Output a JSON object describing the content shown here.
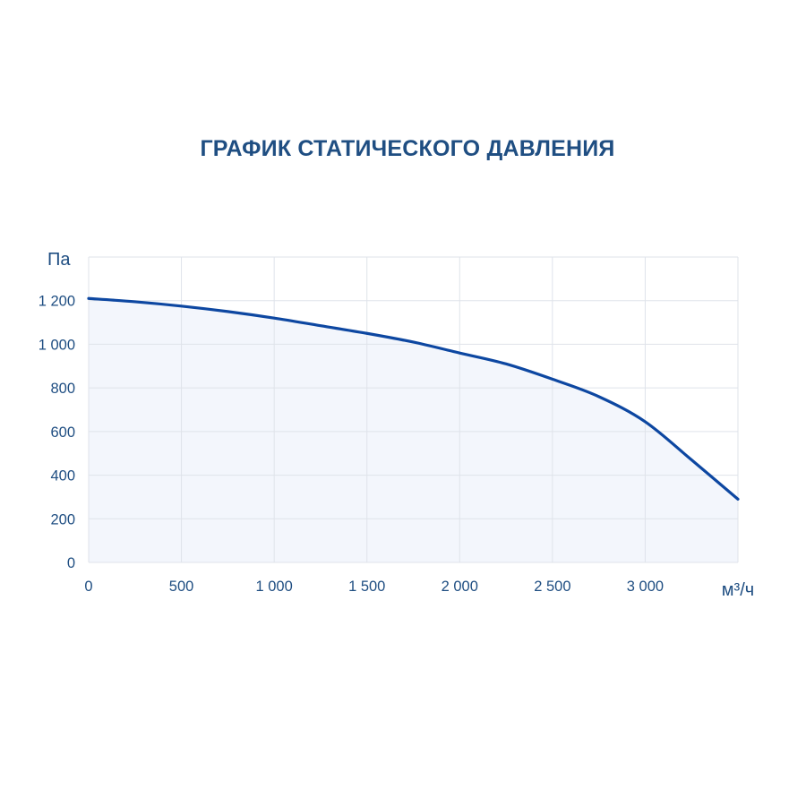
{
  "colors": {
    "title": "#1f4e82",
    "axis_text": "#1f4e82",
    "grid": "#dfe3ea",
    "curve": "#0d47a1",
    "area_fill": "#f2f5fc",
    "background": "#ffffff"
  },
  "chart_data": {
    "type": "area",
    "title": "ГРАФИК СТАТИЧЕСКОГО ДАВЛЕНИЯ",
    "xlabel": "м³/ч",
    "ylabel": "Па",
    "xlim": [
      0,
      3500
    ],
    "ylim": [
      0,
      1400
    ],
    "grid": true,
    "legend": "none",
    "x_ticks": [
      0,
      500,
      1000,
      1500,
      2000,
      2500,
      3000
    ],
    "x_tick_labels": [
      "0",
      "500",
      "1 000",
      "1 500",
      "2 000",
      "2 500",
      "3 000"
    ],
    "y_ticks": [
      0,
      200,
      400,
      600,
      800,
      1000,
      1200
    ],
    "y_tick_labels": [
      "0",
      "200",
      "400",
      "600",
      "800",
      "1 000",
      "1 200"
    ],
    "series": [
      {
        "x": [
          0,
          250,
          500,
          750,
          1000,
          1250,
          1500,
          1750,
          2000,
          2250,
          2500,
          2750,
          3000,
          3250,
          3500
        ],
        "values": [
          1210,
          1195,
          1175,
          1150,
          1120,
          1085,
          1050,
          1010,
          960,
          910,
          840,
          760,
          645,
          470,
          290
        ]
      }
    ]
  }
}
